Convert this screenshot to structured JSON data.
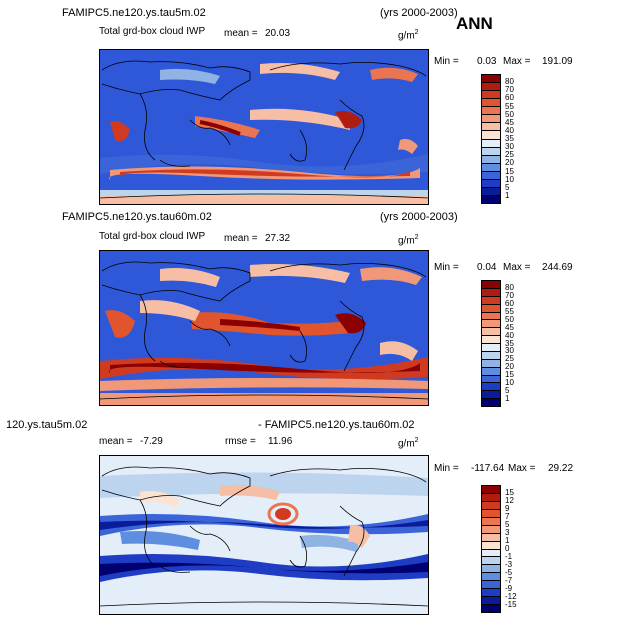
{
  "season": "ANN",
  "panels": [
    {
      "case": "FAMIPC5.ne120.ys.tau5m.02",
      "years": "(yrs 2000-2003)",
      "field": "Total grd-box cloud IWP",
      "mean_label": "mean =",
      "mean": "20.03",
      "units": "g/m",
      "units_exp": "2",
      "min_label": "Min =",
      "min": "0.03",
      "max_label": "Max =",
      "max": "191.09",
      "levels": [
        "80",
        "70",
        "60",
        "55",
        "50",
        "45",
        "40",
        "35",
        "30",
        "25",
        "20",
        "15",
        "10",
        "5",
        "1"
      ],
      "colors": [
        "#8b0000",
        "#b01c10",
        "#d03a20",
        "#e0552e",
        "#ea7550",
        "#f09878",
        "#f6bea4",
        "#fbe3d4",
        "#e4eef8",
        "#bcd4ee",
        "#8fb4e4",
        "#5f8ee0",
        "#3a64d8",
        "#1f3cc4",
        "#0a1c9a",
        "#000070"
      ]
    },
    {
      "case": "FAMIPC5.ne120.ys.tau60m.02",
      "years": "(yrs 2000-2003)",
      "field": "Total grd-box cloud IWP",
      "mean_label": "mean =",
      "mean": "27.32",
      "units": "g/m",
      "units_exp": "2",
      "min_label": "Min =",
      "min": "0.04",
      "max_label": "Max =",
      "max": "244.69",
      "levels": [
        "80",
        "70",
        "60",
        "55",
        "50",
        "45",
        "40",
        "35",
        "30",
        "25",
        "20",
        "15",
        "10",
        "5",
        "1"
      ],
      "colors": [
        "#8b0000",
        "#b01c10",
        "#d03a20",
        "#e0552e",
        "#ea7550",
        "#f09878",
        "#f6bea4",
        "#fbe3d4",
        "#e4eef8",
        "#bcd4ee",
        "#8fb4e4",
        "#5f8ee0",
        "#3a64d8",
        "#1f3cc4",
        "#0a1c9a",
        "#000070"
      ]
    },
    {
      "case": "120.ys.tau5m.02",
      "case2": "- FAMIPC5.ne120.ys.tau60m.02",
      "mean_label": "mean =",
      "mean": "-7.29",
      "rmse_label": "rmse =",
      "rmse": "11.96",
      "units": "g/m",
      "units_exp": "2",
      "min_label": "Min =",
      "min": "-117.64",
      "max_label": "Max =",
      "max": "29.22",
      "levels": [
        "15",
        "12",
        "9",
        "7",
        "5",
        "3",
        "1",
        "0",
        "-1",
        "-3",
        "-5",
        "-7",
        "-9",
        "-12",
        "-15"
      ],
      "colors": [
        "#8b0000",
        "#b01c10",
        "#d03a20",
        "#e0552e",
        "#ea7550",
        "#f09878",
        "#f6bea4",
        "#fbe3d4",
        "#e4eef8",
        "#bcd4ee",
        "#8fb4e4",
        "#5f8ee0",
        "#3a64d8",
        "#1f3cc4",
        "#0a1c9a",
        "#000070"
      ]
    }
  ]
}
